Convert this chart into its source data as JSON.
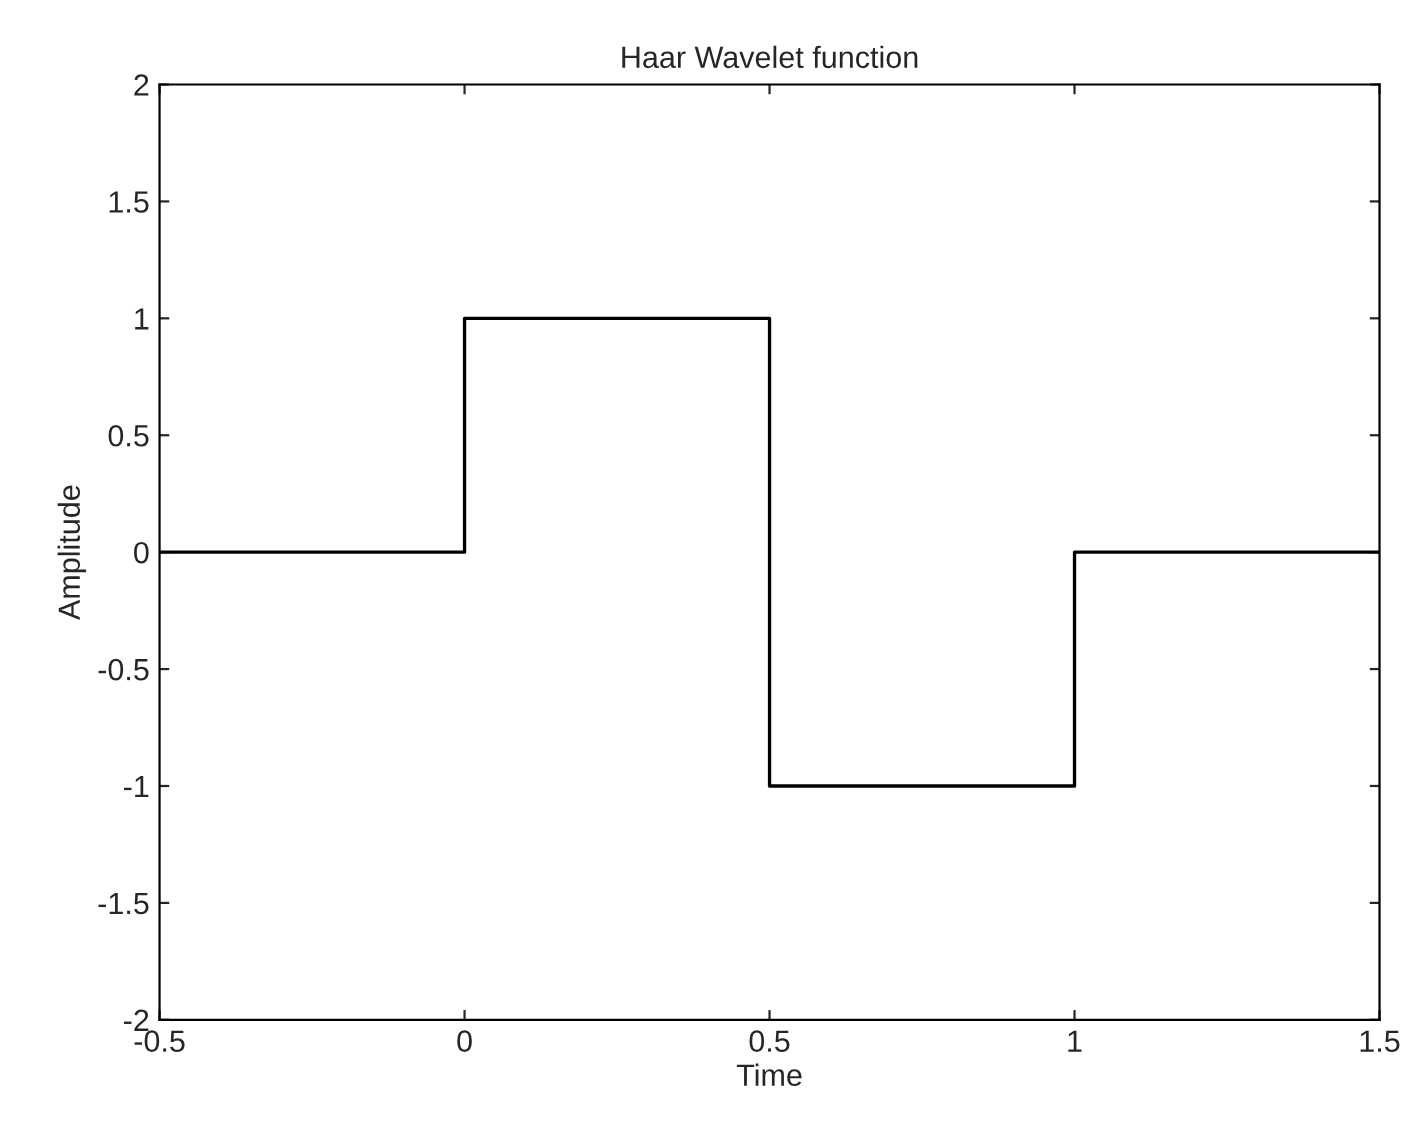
{
  "chart_data": {
    "type": "line",
    "title": "Haar Wavelet function",
    "xlabel": "Time",
    "ylabel": "Amplitude",
    "series": [
      {
        "color": "#000000",
        "x": [
          -0.5,
          0,
          0,
          0.5,
          0.5,
          1,
          1,
          1.5
        ],
        "values": [
          0,
          0,
          1,
          1,
          -1,
          -1,
          0,
          0
        ]
      }
    ],
    "xlim": [
      -0.5,
      1.5
    ],
    "xticks": [
      -0.5,
      0,
      0.5,
      1,
      1.5
    ],
    "ylim": [
      -2,
      2
    ],
    "yticks": [
      -2,
      -1.5,
      -1,
      -0.5,
      0,
      0.5,
      1,
      1.5,
      2
    ],
    "grid": false,
    "legend": false
  }
}
